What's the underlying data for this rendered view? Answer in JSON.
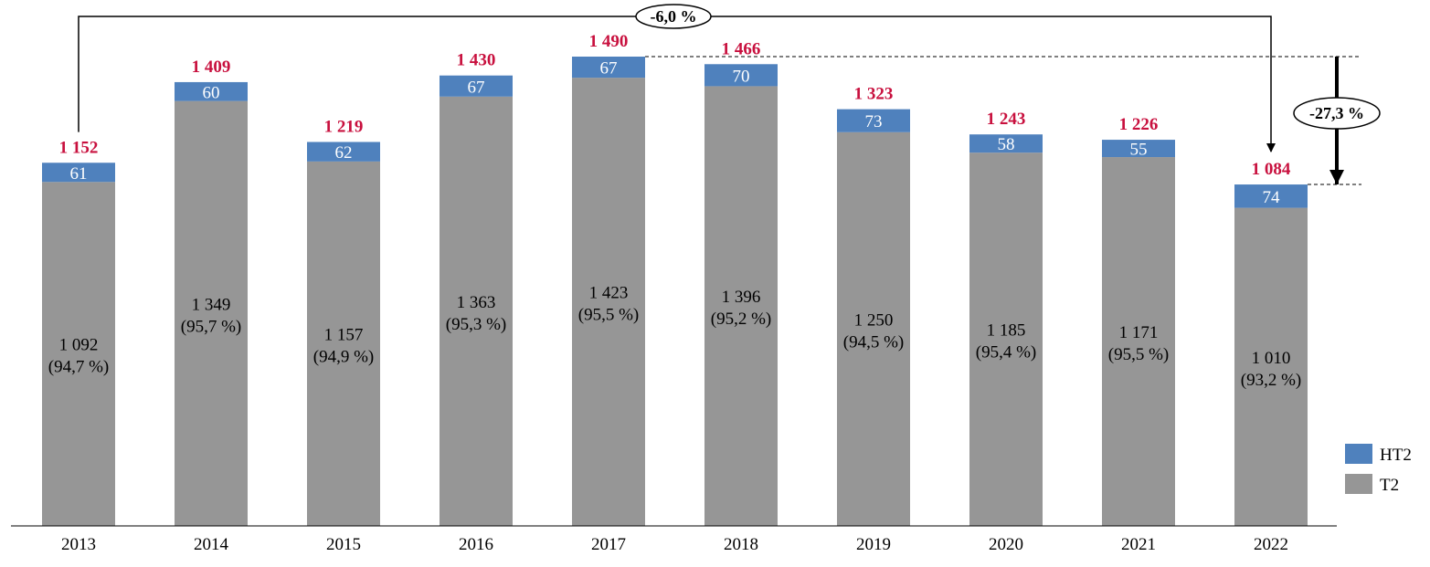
{
  "chart_data": {
    "type": "bar",
    "stacked": true,
    "categories": [
      "2013",
      "2014",
      "2015",
      "2016",
      "2017",
      "2018",
      "2019",
      "2020",
      "2021",
      "2022"
    ],
    "series": [
      {
        "name": "T2",
        "color": "#969696",
        "values": [
          1092,
          1349,
          1157,
          1363,
          1423,
          1396,
          1250,
          1185,
          1171,
          1010
        ],
        "labels": [
          "1 092",
          "1 349",
          "1 157",
          "1 363",
          "1 423",
          "1 396",
          "1 250",
          "1 185",
          "1 171",
          "1 010"
        ],
        "shares": [
          "(94,7 %)",
          "(95,7 %)",
          "(94,9 %)",
          "(95,3 %)",
          "(95,5 %)",
          "(95,2 %)",
          "(94,5 %)",
          "(95,4 %)",
          "(95,5 %)",
          "(93,2 %)"
        ]
      },
      {
        "name": "HT2",
        "color": "#4f81bd",
        "values": [
          61,
          60,
          62,
          67,
          67,
          70,
          73,
          58,
          55,
          74
        ],
        "labels": [
          "61",
          "60",
          "62",
          "67",
          "67",
          "70",
          "73",
          "58",
          "55",
          "74"
        ]
      }
    ],
    "totals": [
      "1 152",
      "1 409",
      "1 219",
      "1 430",
      "1 490",
      "1 466",
      "1 323",
      "1 243",
      "1 226",
      "1 084"
    ],
    "total_values": [
      1152,
      1409,
      1219,
      1430,
      1490,
      1466,
      1323,
      1243,
      1226,
      1084
    ],
    "total_color": "#c8103e",
    "ylim": [
      0,
      1490
    ],
    "grid": false,
    "legend": "right",
    "legend_items": [
      "HT2",
      "T2"
    ],
    "annotations": [
      {
        "text": "-6,0 %",
        "from": "2013",
        "to": "2022"
      },
      {
        "text": "-27,3 %",
        "from": "2017",
        "to": "2022"
      }
    ]
  }
}
